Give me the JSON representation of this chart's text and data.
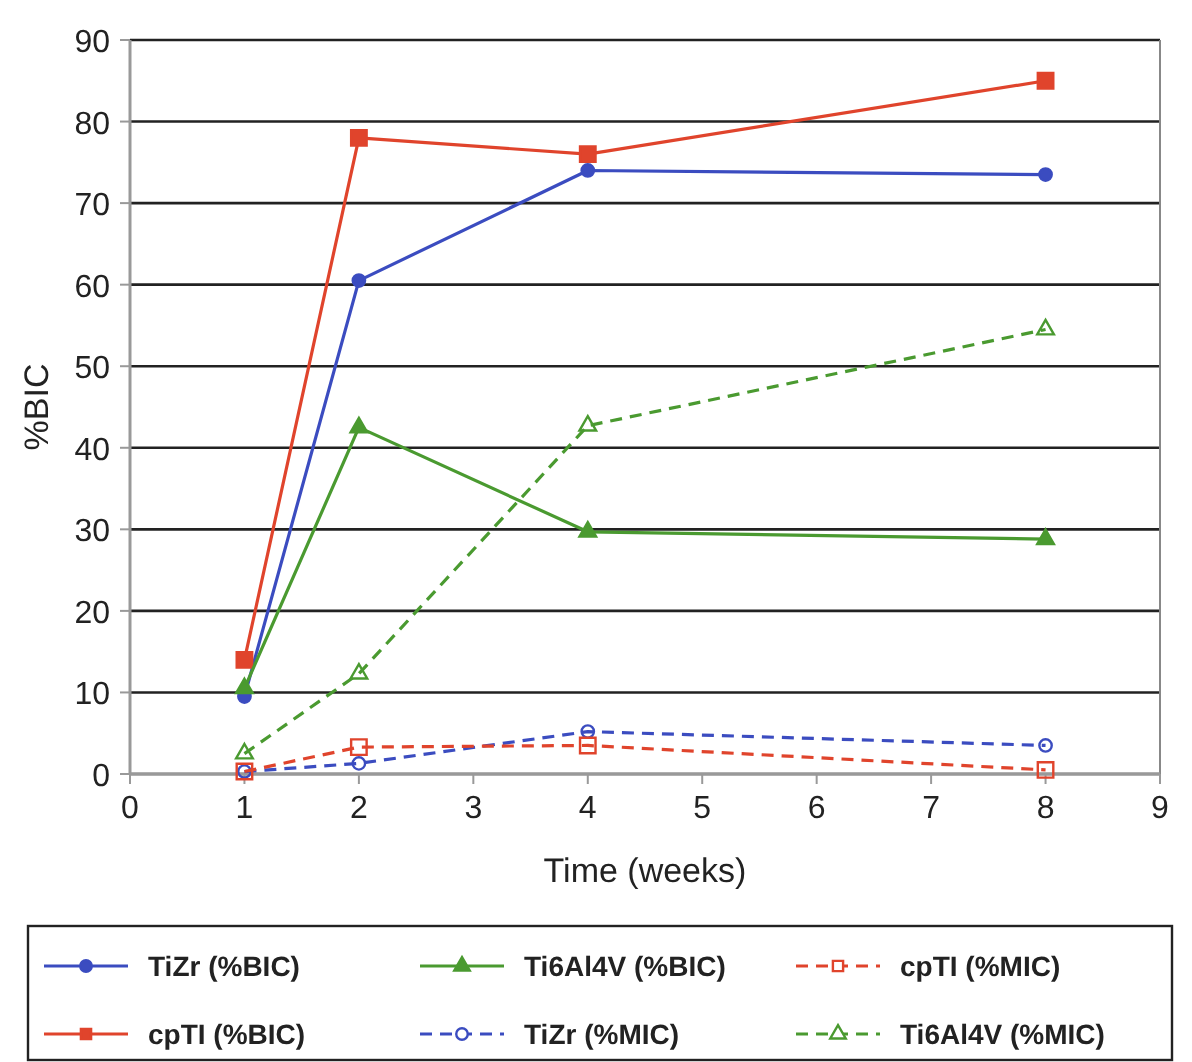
{
  "chart_data": {
    "type": "line",
    "xlabel": "Time (weeks)",
    "ylabel": "%BIC",
    "x": [
      1,
      2,
      4,
      8
    ],
    "xlim": [
      0,
      9
    ],
    "xticks": [
      0,
      1,
      2,
      3,
      4,
      5,
      6,
      7,
      8,
      9
    ],
    "ylim": [
      0,
      90
    ],
    "yticks": [
      0,
      10,
      20,
      30,
      40,
      50,
      60,
      70,
      80,
      90
    ],
    "grid": "y",
    "legend": "bottom",
    "series": [
      {
        "name": "TiZr (%BIC)",
        "color": "#3b4cc0",
        "values": [
          9.5,
          60.5,
          74,
          73.5
        ],
        "marker": "circle",
        "line_style": "solid"
      },
      {
        "name": "cpTI (%BIC)",
        "color": "#e0442c",
        "values": [
          14,
          78,
          76,
          85
        ],
        "marker": "square",
        "line_style": "solid"
      },
      {
        "name": "Ti6Al4V (%BIC)",
        "color": "#4a9a30",
        "values": [
          10.5,
          42.5,
          29.7,
          28.8
        ],
        "marker": "triangle",
        "line_style": "solid"
      },
      {
        "name": "TiZr (%MIC)",
        "color": "#3b4cc0",
        "values": [
          0.3,
          1.3,
          5.2,
          3.5
        ],
        "marker": "circle",
        "line_style": "dashed"
      },
      {
        "name": "cpTI (%MIC)",
        "color": "#e0442c",
        "values": [
          0.3,
          3.3,
          3.5,
          0.5
        ],
        "marker": "square",
        "line_style": "dashed"
      },
      {
        "name": "Ti6Al4V (%MIC)",
        "color": "#4a9a30",
        "values": [
          2.5,
          12.3,
          42.7,
          54.5
        ],
        "marker": "triangle",
        "line_style": "dashed"
      }
    ]
  }
}
